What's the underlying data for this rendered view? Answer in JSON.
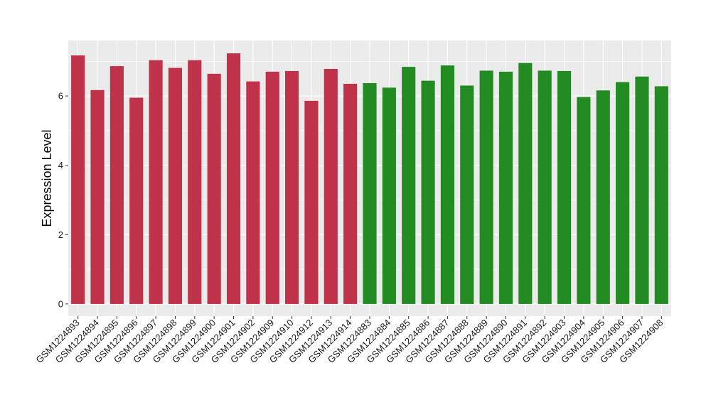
{
  "chart_data": {
    "type": "bar",
    "title": "",
    "xlabel": "",
    "ylabel": "Expression Level",
    "ylim": [
      -0.35,
      7.6
    ],
    "yticks": [
      0,
      2,
      4,
      6
    ],
    "grid": true,
    "legend": "none",
    "categories": [
      "GSM1224893",
      "GSM1224894",
      "GSM1224895",
      "GSM1224896",
      "GSM1224897",
      "GSM1224898",
      "GSM1224899",
      "GSM1224900",
      "GSM1224901",
      "GSM1224902",
      "GSM1224909",
      "GSM1224910",
      "GSM1224912",
      "GSM1224913",
      "GSM1224914",
      "GSM1224883",
      "GSM1224884",
      "GSM1224885",
      "GSM1224886",
      "GSM1224887",
      "GSM1224888",
      "GSM1224889",
      "GSM1224890",
      "GSM1224891",
      "GSM1224892",
      "GSM1224903",
      "GSM1224904",
      "GSM1224905",
      "GSM1224906",
      "GSM1224907",
      "GSM1224908"
    ],
    "values": [
      7.17,
      6.17,
      6.86,
      5.95,
      7.03,
      6.81,
      7.03,
      6.64,
      7.23,
      6.42,
      6.7,
      6.72,
      5.86,
      6.78,
      6.35,
      6.37,
      6.24,
      6.84,
      6.44,
      6.88,
      6.3,
      6.73,
      6.7,
      6.95,
      6.73,
      6.72,
      5.97,
      6.16,
      6.4,
      6.56,
      6.28
    ],
    "groups": [
      "red",
      "red",
      "red",
      "red",
      "red",
      "red",
      "red",
      "red",
      "red",
      "red",
      "red",
      "red",
      "red",
      "red",
      "red",
      "green",
      "green",
      "green",
      "green",
      "green",
      "green",
      "green",
      "green",
      "green",
      "green",
      "green",
      "green",
      "green",
      "green",
      "green",
      "green"
    ],
    "colors": {
      "red": "#C0314A",
      "green": "#228B22",
      "panel": "#EBEBEB",
      "grid": "#FFFFFF"
    }
  }
}
